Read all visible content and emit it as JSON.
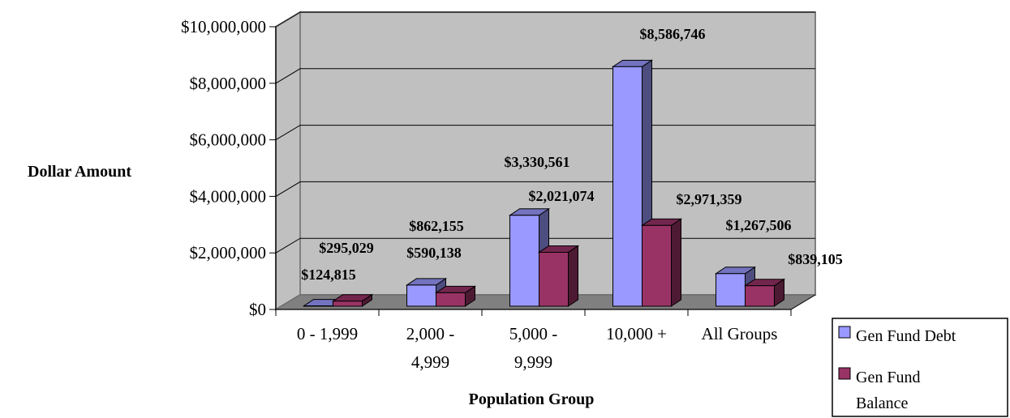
{
  "chart_data": {
    "type": "bar",
    "title": "",
    "xlabel": "Population Group",
    "ylabel": "Dollar Amount",
    "ylim": [
      0,
      10000000
    ],
    "yticks": [
      0,
      2000000,
      4000000,
      6000000,
      8000000,
      10000000
    ],
    "ytick_labels": [
      "$0",
      "$2,000,000",
      "$4,000,000",
      "$6,000,000",
      "$8,000,000",
      "$10,000,000"
    ],
    "categories": [
      [
        "0 - 1,999"
      ],
      [
        "2,000 -",
        "4,999"
      ],
      [
        "5,000 -",
        "9,999"
      ],
      [
        "10,000 +"
      ],
      [
        "All Groups"
      ]
    ],
    "series": [
      {
        "name": "Gen Fund Debt",
        "color": "#9999ff",
        "values": [
          124815,
          862155,
          3330561,
          8586746,
          1267506
        ],
        "labels": [
          "$124,815",
          "$862,155",
          "$3,330,561",
          "$8,586,746",
          "$1,267,506"
        ]
      },
      {
        "name": "Gen Fund Balance",
        "color": "#993366",
        "values": [
          295029,
          590138,
          2021074,
          2971359,
          839105
        ],
        "labels": [
          "$295,029",
          "$590,138",
          "$2,021,074",
          "$2,971,359",
          "$839,105"
        ]
      }
    ],
    "legend": {
      "position": "bottom-right",
      "entries": [
        [
          "Gen Fund Debt"
        ],
        [
          "Gen Fund",
          "Balance"
        ]
      ]
    },
    "grid": true,
    "style": "3d-clustered-column"
  }
}
